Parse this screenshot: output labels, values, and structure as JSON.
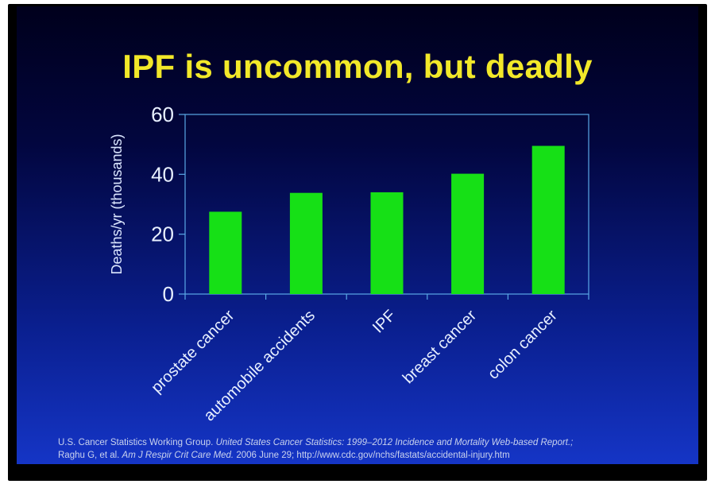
{
  "slide": {
    "title": "IPF is uncommon, but deadly",
    "source_line1_a": "U.S. Cancer Statistics Working Group. ",
    "source_line1_b": "United States Cancer Statistics: 1999–2012 Incidence and Mortality Web-based Report.;",
    "source_line2_a": "Raghu G, et al. ",
    "source_line2_b": "Am J Respir Crit Care Med.",
    "source_line2_c": " 2006 June 29; http://www.cdc.gov/nchs/fastats/accidental-injury.htm"
  },
  "colors": {
    "title": "#f2e829",
    "bar": "#16e016",
    "axis": "#5aa8e6",
    "text": "#e8f0ff"
  },
  "chart_data": {
    "type": "bar",
    "categories": [
      "prostate cancer",
      "automobile accidents",
      "IPF",
      "breast cancer",
      "colon cancer"
    ],
    "values": [
      27.5,
      33.8,
      34,
      40.2,
      49.5
    ],
    "title": "IPF is uncommon, but deadly",
    "xlabel": "",
    "ylabel": "Deaths/yr (thousands)",
    "ylim": [
      0,
      60
    ],
    "yticks": [
      0,
      20,
      40,
      60
    ],
    "grid": false,
    "legend": "none"
  }
}
